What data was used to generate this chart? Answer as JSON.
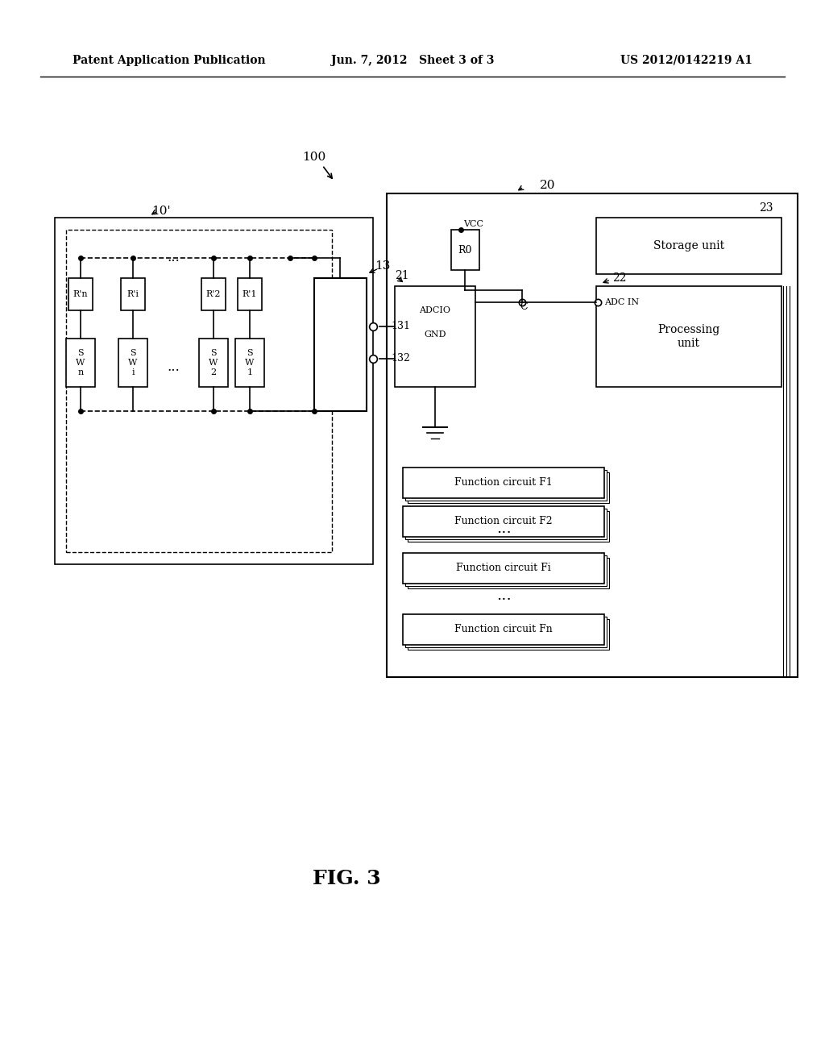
{
  "bg_color": "#ffffff",
  "text_color": "#000000",
  "header_left": "Patent Application Publication",
  "header_center": "Jun. 7, 2012   Sheet 3 of 3",
  "header_right": "US 2012/0142219 A1",
  "fig_label": "FIG. 3",
  "label_100": "100",
  "label_10p": "10'",
  "label_20": "20",
  "label_13": "13",
  "label_131": "131",
  "label_132": "132",
  "label_21": "21",
  "label_22": "22",
  "label_23": "23",
  "label_vcc": "VCC",
  "label_r0": "R0",
  "label_adcio": "ADCIO",
  "label_c": "C",
  "label_gnd": "GND",
  "label_adcin": "ADC IN",
  "label_processing": "Processing\nunit",
  "label_storage": "Storage unit",
  "func_circuits": [
    "Function circuit F1",
    "Function circuit F2",
    "Function circuit Fi",
    "Function circuit Fn"
  ]
}
